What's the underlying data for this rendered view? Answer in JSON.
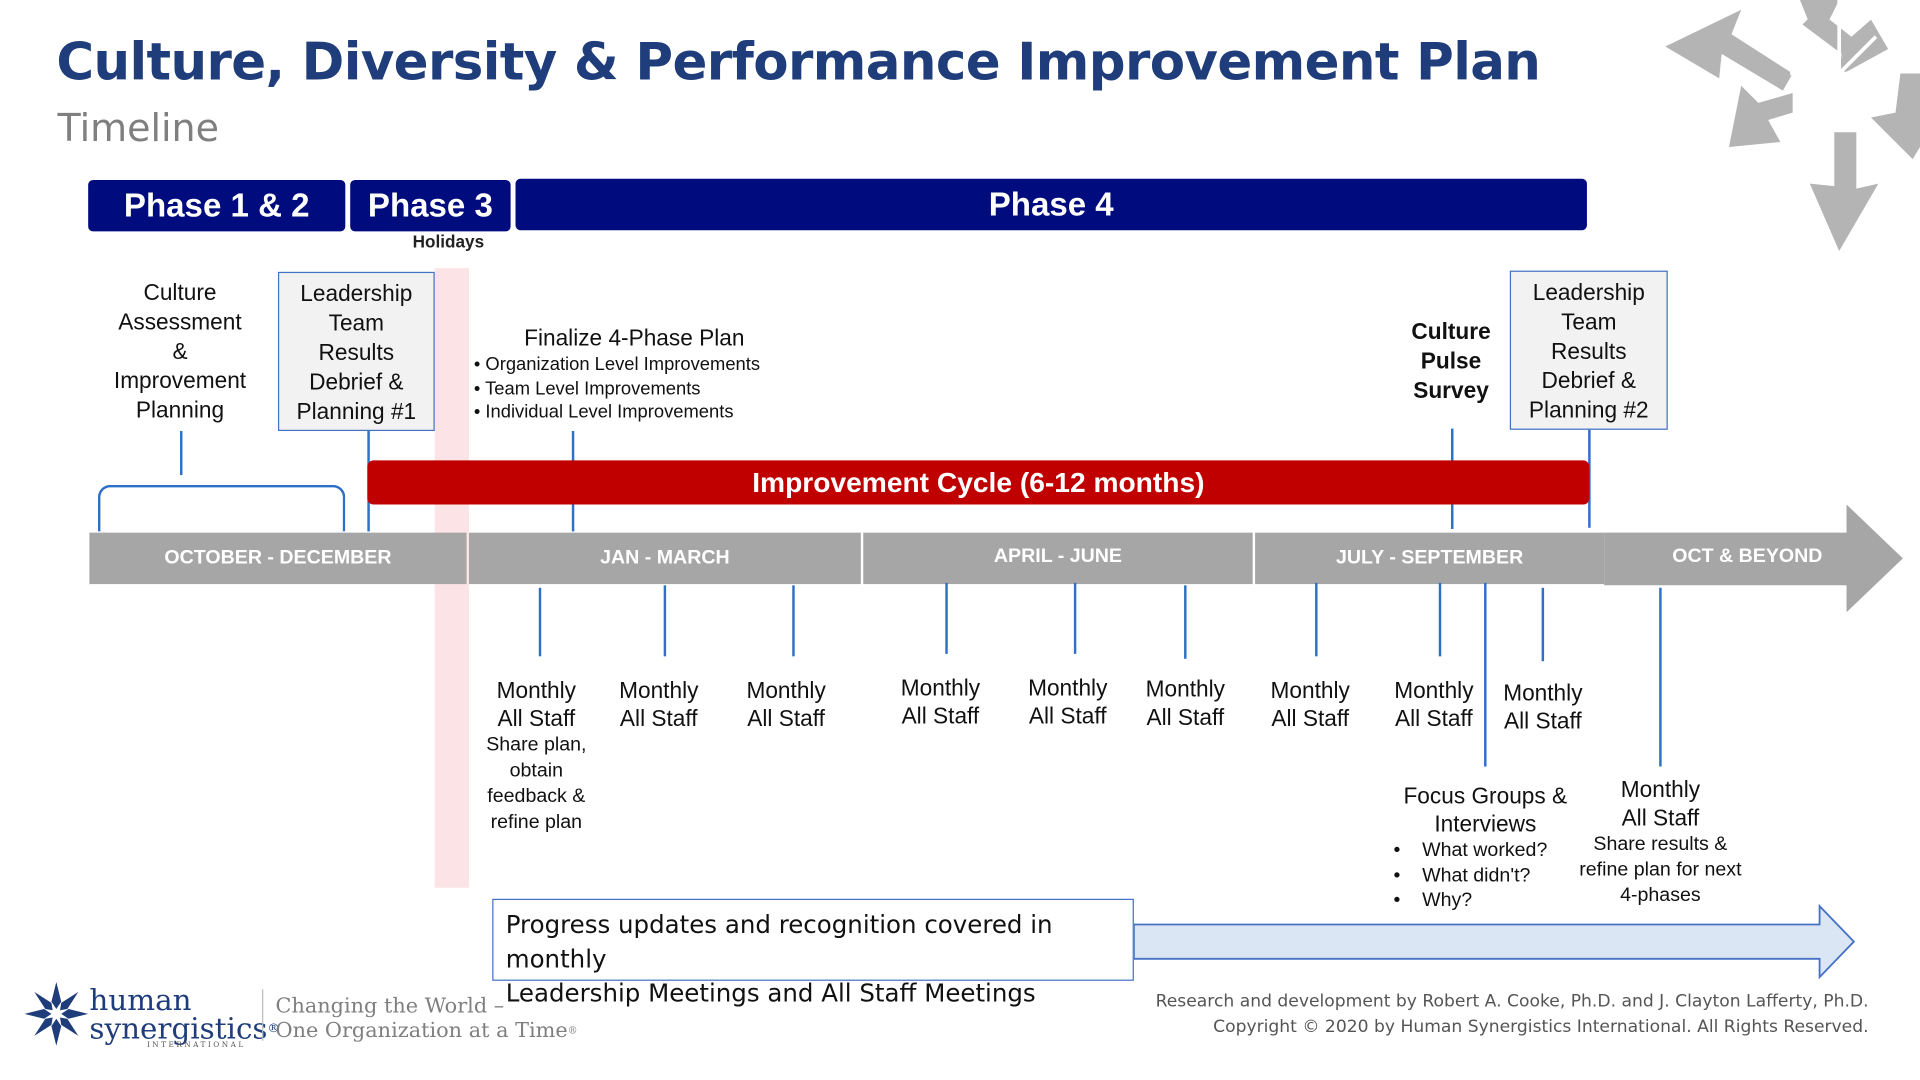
{
  "header": {
    "title": "Culture, Diversity & Performance Improvement Plan",
    "subtitle": "Timeline"
  },
  "phases": [
    "Phase 1 & 2",
    "Phase 3",
    "Phase 4"
  ],
  "holidays_label": "Holidays",
  "culture_assessment": [
    "Culture",
    "Assessment",
    "&",
    "Improvement",
    "Planning"
  ],
  "debrief_1": [
    "Leadership",
    "Team",
    "Results",
    "Debrief &",
    "Planning #1"
  ],
  "finalize": {
    "heading": "Finalize 4-Phase Plan",
    "items": [
      "Organization Level Improvements",
      "Team Level Improvements",
      "Individual Level Improvements"
    ]
  },
  "pulse_survey": [
    "Culture",
    "Pulse",
    "Survey"
  ],
  "debrief_2": [
    "Leadership",
    "Team",
    "Results",
    "Debrief &",
    "Planning #2"
  ],
  "improvement_cycle": "Improvement Cycle (6-12 months)",
  "timeline": [
    "OCTOBER - DECEMBER",
    "JAN - MARCH",
    "APRIL - JUNE",
    "JULY - SEPTEMBER",
    "OCT & BEYOND"
  ],
  "monthly_line1": "Monthly",
  "monthly_line2": "All Staff",
  "first_monthly_note": [
    "Share plan,",
    "obtain",
    "feedback &",
    "refine plan"
  ],
  "focus_groups": {
    "heading": [
      "Focus Groups &",
      "Interviews"
    ],
    "items": [
      "What worked?",
      "What didn't?",
      "Why?"
    ]
  },
  "final_monthly_note": [
    "Share results &",
    "refine plan for next",
    "4-phases"
  ],
  "progress_text": [
    "Progress updates and recognition covered in monthly",
    "Leadership Meetings and All Staff Meetings"
  ],
  "footer": {
    "credit": "Research and development by Robert A. Cooke, Ph.D. and J. Clayton Lafferty, Ph.D.",
    "copyright": "Copyright © 2020 by Human Synergistics International. All Rights Reserved.",
    "brand_line1": "human",
    "brand_line2": "synergistics",
    "brand_reg": "®",
    "brand_intl": "INTERNATIONAL",
    "tagline_1": "Changing the World –",
    "tagline_2": "One Organization at a Time",
    "tagline_reg": "®"
  },
  "colors": {
    "title": "#1f3d7a",
    "phase_bar": "#000c7e",
    "improvement_bar": "#c00000",
    "timeline": "#a6a6a6",
    "connector": "#2e6fc7",
    "holiday_stripe": "#fbe3e6"
  }
}
